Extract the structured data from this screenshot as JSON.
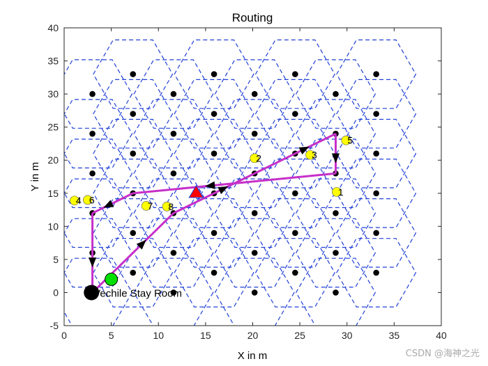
{
  "chart_data": {
    "type": "scatter",
    "title": "Routing",
    "xlabel": "X in m",
    "ylabel": "Y in m",
    "xlim": [
      0,
      40
    ],
    "ylim": [
      -5,
      40
    ],
    "xticks": [
      "0",
      "5",
      "10",
      "15",
      "20",
      "25",
      "30",
      "35",
      "40"
    ],
    "yticks": [
      "-5",
      "0",
      "5",
      "10",
      "15",
      "20",
      "25",
      "30",
      "35",
      "40"
    ],
    "grid": false,
    "legend": "none",
    "hex_radius": 4.2,
    "cell_centers": [
      [
        3,
        0
      ],
      [
        3,
        6
      ],
      [
        3,
        12
      ],
      [
        3,
        18
      ],
      [
        3,
        24
      ],
      [
        3,
        30
      ],
      [
        7.3,
        3
      ],
      [
        7.3,
        9
      ],
      [
        7.3,
        15
      ],
      [
        7.3,
        21
      ],
      [
        7.3,
        27
      ],
      [
        7.3,
        33
      ],
      [
        11.6,
        0
      ],
      [
        11.6,
        6
      ],
      [
        11.6,
        12
      ],
      [
        11.6,
        18
      ],
      [
        11.6,
        24
      ],
      [
        11.6,
        30
      ],
      [
        15.9,
        3
      ],
      [
        15.9,
        9
      ],
      [
        15.9,
        15
      ],
      [
        15.9,
        21
      ],
      [
        15.9,
        27
      ],
      [
        15.9,
        33
      ],
      [
        20.2,
        0
      ],
      [
        20.2,
        6
      ],
      [
        20.2,
        12
      ],
      [
        20.2,
        18
      ],
      [
        20.2,
        24
      ],
      [
        20.2,
        30
      ],
      [
        24.5,
        3
      ],
      [
        24.5,
        9
      ],
      [
        24.5,
        15
      ],
      [
        24.5,
        21
      ],
      [
        24.5,
        27
      ],
      [
        24.5,
        33
      ],
      [
        28.8,
        0
      ],
      [
        28.8,
        6
      ],
      [
        28.8,
        12
      ],
      [
        28.8,
        18
      ],
      [
        28.8,
        24
      ],
      [
        28.8,
        30
      ],
      [
        33.1,
        3
      ],
      [
        33.1,
        9
      ],
      [
        33.1,
        15
      ],
      [
        33.1,
        21
      ],
      [
        33.1,
        27
      ],
      [
        33.1,
        33
      ]
    ],
    "nodes": [
      {
        "label": "1",
        "x": 28.9,
        "y": 15.2
      },
      {
        "label": "2",
        "x": 20.2,
        "y": 20.3
      },
      {
        "label": "3",
        "x": 26.1,
        "y": 20.8
      },
      {
        "label": "4",
        "x": 1.1,
        "y": 13.9
      },
      {
        "label": "5",
        "x": 29.9,
        "y": 23.0
      },
      {
        "label": "6",
        "x": 2.5,
        "y": 14.0
      },
      {
        "label": "7",
        "x": 8.7,
        "y": 13.1
      },
      {
        "label": "8",
        "x": 10.9,
        "y": 13.0
      }
    ],
    "route": [
      [
        3,
        0
      ],
      [
        11.6,
        12
      ],
      [
        20.2,
        18
      ],
      [
        28.8,
        24
      ],
      [
        28.8,
        18
      ],
      [
        7.3,
        15
      ],
      [
        3,
        12
      ],
      [
        3,
        0
      ]
    ],
    "red_triangle": {
      "x": 14.0,
      "y": 15.1
    },
    "green_point": {
      "x": 5.0,
      "y": 2.0
    },
    "stay_room": {
      "x": 2.9,
      "y": 0.0,
      "label": "Vechile Stay Room"
    },
    "colors": {
      "hexagon": "#1f3fd6",
      "center": "#000000",
      "node": "#ffff00",
      "route": "#c72fc9",
      "arrow": "#000000",
      "triangle": "#ff0000",
      "green": "#00e000"
    }
  },
  "watermark": "CSDN @海神之光"
}
